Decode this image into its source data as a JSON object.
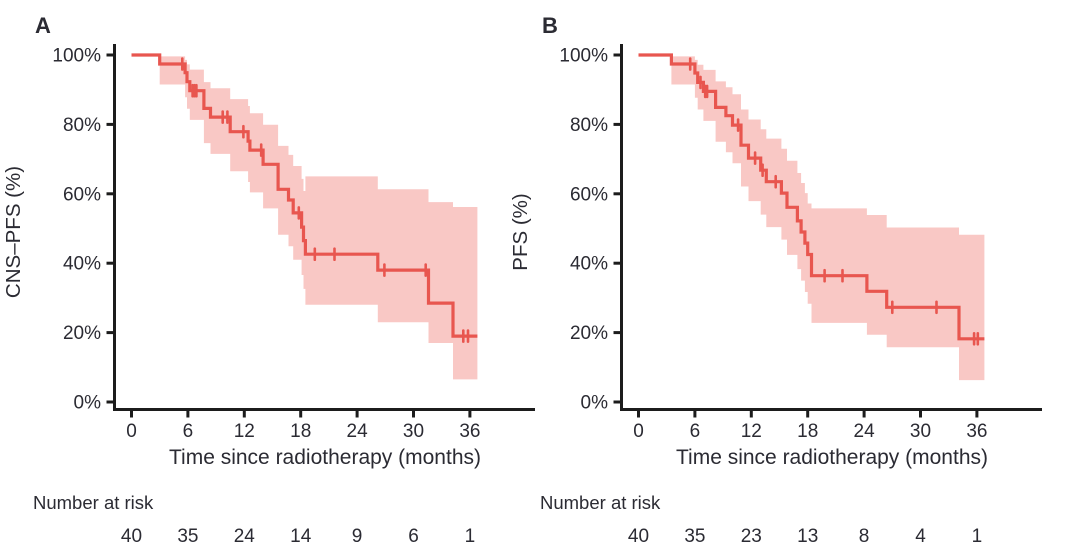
{
  "chart_data": [
    {
      "type": "line",
      "subtype": "kaplan_meier_step",
      "panel_label": "A",
      "xlabel": "Time since radiotherapy (months)",
      "ylabel": "CNS–PFS (%)",
      "xlim": [
        0,
        38
      ],
      "ylim": [
        0,
        100
      ],
      "xticks": [
        0,
        6,
        12,
        18,
        24,
        30,
        36
      ],
      "yticks": [
        0,
        20,
        40,
        60,
        80,
        100
      ],
      "ytick_labels": [
        "0%",
        "20%",
        "40%",
        "60%",
        "80%",
        "100%"
      ],
      "grid": false,
      "legend": "none",
      "line_color": "#e8564f",
      "band_color": "#f9c8c5",
      "steps": [
        [
          0,
          100
        ],
        [
          3,
          97.4
        ],
        [
          5.7,
          94.9
        ],
        [
          5.9,
          92.3
        ],
        [
          6.2,
          89.7
        ],
        [
          7.7,
          84.6
        ],
        [
          8.4,
          82.1
        ],
        [
          10.5,
          77.9
        ],
        [
          12.4,
          75.2
        ],
        [
          12.6,
          72.6
        ],
        [
          14,
          68.5
        ],
        [
          15.6,
          61.3
        ],
        [
          16.7,
          58.2
        ],
        [
          17.2,
          54.5
        ],
        [
          18.1,
          50.4
        ],
        [
          18.3,
          46.5
        ],
        [
          18.5,
          42.6
        ],
        [
          26.2,
          38.0
        ],
        [
          31.6,
          28.5
        ],
        [
          34.2,
          19.0
        ]
      ],
      "end_time": 36.8,
      "band": [
        [
          3,
          91.5,
          99.6
        ],
        [
          5.7,
          87.8,
          98.6
        ],
        [
          5.9,
          84.5,
          97.3
        ],
        [
          6.2,
          81.3,
          95.8
        ],
        [
          7.7,
          74.6,
          92.2
        ],
        [
          8.4,
          71.5,
          90.4
        ],
        [
          10.5,
          66.5,
          87.3
        ],
        [
          12.4,
          63.4,
          85.3
        ],
        [
          12.6,
          60.4,
          83.2
        ],
        [
          14,
          55.8,
          79.9
        ],
        [
          15.6,
          48.2,
          73.8
        ],
        [
          16.7,
          44.9,
          71.2
        ],
        [
          17.2,
          41.0,
          68.0
        ],
        [
          18.1,
          36.6,
          64.3
        ],
        [
          18.3,
          32.6,
          60.8
        ],
        [
          18.5,
          28.0,
          65.0
        ],
        [
          26.2,
          23.0,
          61.3
        ],
        [
          31.6,
          17.0,
          57.6
        ],
        [
          34.2,
          6.5,
          56.2
        ]
      ],
      "censors": [
        [
          5.4,
          97.4
        ],
        [
          6.5,
          89.7
        ],
        [
          6.7,
          89.7
        ],
        [
          6.9,
          89.7
        ],
        [
          9.7,
          82.1
        ],
        [
          10.2,
          82.1
        ],
        [
          11.9,
          77.9
        ],
        [
          13.8,
          72.6
        ],
        [
          17.8,
          54.5
        ],
        [
          19.5,
          42.6
        ],
        [
          21.6,
          42.6
        ],
        [
          26.9,
          38.0
        ],
        [
          31.3,
          38.0
        ],
        [
          35.3,
          19.0
        ],
        [
          35.8,
          19.0
        ]
      ],
      "number_at_risk": {
        "label": "Number at risk",
        "times": [
          0,
          6,
          12,
          18,
          24,
          30,
          36
        ],
        "counts": [
          40,
          35,
          24,
          14,
          9,
          6,
          1
        ]
      }
    },
    {
      "type": "line",
      "subtype": "kaplan_meier_step",
      "panel_label": "B",
      "xlabel": "Time since radiotherapy (months)",
      "ylabel": "PFS (%)",
      "xlim": [
        0,
        38
      ],
      "ylim": [
        0,
        100
      ],
      "xticks": [
        0,
        6,
        12,
        18,
        24,
        30,
        36
      ],
      "yticks": [
        0,
        20,
        40,
        60,
        80,
        100
      ],
      "ytick_labels": [
        "0%",
        "20%",
        "40%",
        "60%",
        "80%",
        "100%"
      ],
      "grid": false,
      "legend": "none",
      "line_color": "#e8564f",
      "band_color": "#f9c8c5",
      "steps": [
        [
          0,
          100
        ],
        [
          3.5,
          97.4
        ],
        [
          6,
          94.8
        ],
        [
          6.3,
          92.1
        ],
        [
          6.9,
          89.5
        ],
        [
          8.2,
          84.9
        ],
        [
          9.3,
          82.5
        ],
        [
          10,
          79.8
        ],
        [
          10.9,
          74.0
        ],
        [
          11.7,
          70.3
        ],
        [
          13,
          66.8
        ],
        [
          13.6,
          63.5
        ],
        [
          15.2,
          60.2
        ],
        [
          15.8,
          56.1
        ],
        [
          16.9,
          52.2
        ],
        [
          17.3,
          49.0
        ],
        [
          17.7,
          45.8
        ],
        [
          18,
          42.5
        ],
        [
          18.4,
          36.4
        ],
        [
          24.3,
          31.9
        ],
        [
          26.4,
          27.3
        ],
        [
          34.1,
          18.2
        ]
      ],
      "end_time": 36.8,
      "band": [
        [
          3.5,
          91.5,
          99.6
        ],
        [
          6,
          87.7,
          98.6
        ],
        [
          6.3,
          84.3,
          97.2
        ],
        [
          6.9,
          81.0,
          95.7
        ],
        [
          8.2,
          75.0,
          92.4
        ],
        [
          9.3,
          72.0,
          90.7
        ],
        [
          10,
          68.8,
          88.7
        ],
        [
          10.9,
          62.1,
          84.3
        ],
        [
          11.7,
          57.9,
          81.4
        ],
        [
          13,
          54.0,
          78.6
        ],
        [
          13.6,
          50.4,
          75.9
        ],
        [
          15.2,
          46.8,
          73.0
        ],
        [
          15.8,
          42.4,
          69.5
        ],
        [
          16.9,
          38.3,
          66.0
        ],
        [
          17.3,
          35.0,
          63.1
        ],
        [
          17.7,
          31.7,
          60.2
        ],
        [
          18,
          28.3,
          57.2
        ],
        [
          18.4,
          22.8,
          55.8
        ],
        [
          24.3,
          19.4,
          53.9
        ],
        [
          26.4,
          15.8,
          50.3
        ],
        [
          34.1,
          6.3,
          48.2
        ]
      ],
      "censors": [
        [
          5.5,
          97.4
        ],
        [
          6.6,
          92.1
        ],
        [
          7.1,
          89.5
        ],
        [
          7.3,
          89.5
        ],
        [
          10.6,
          79.8
        ],
        [
          12.4,
          70.3
        ],
        [
          13.2,
          66.8
        ],
        [
          14.6,
          63.5
        ],
        [
          19.8,
          36.4
        ],
        [
          21.7,
          36.4
        ],
        [
          27.0,
          27.3
        ],
        [
          31.7,
          27.3
        ],
        [
          35.7,
          18.2
        ],
        [
          36.1,
          18.2
        ]
      ],
      "number_at_risk": {
        "label": "Number at risk",
        "times": [
          0,
          6,
          12,
          18,
          24,
          30,
          36
        ],
        "counts": [
          40,
          35,
          23,
          13,
          8,
          4,
          1
        ]
      }
    }
  ]
}
